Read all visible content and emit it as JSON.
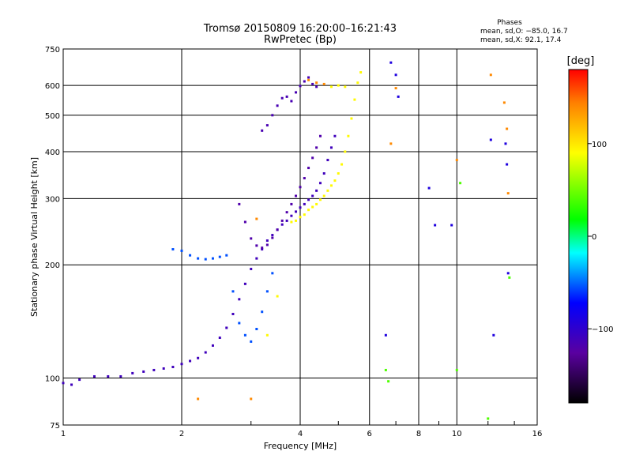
{
  "chart_data": {
    "type": "scatter",
    "title": "Tromsø 20150809 16:20:00–16:21:43",
    "subtitle": "RwPretec (Bp)",
    "xlabel": "Frequency [MHz]",
    "ylabel": "Stationary phase Virtual Height [km]",
    "x_scale": "log",
    "y_scale": "log",
    "xlim": [
      1,
      16
    ],
    "ylim": [
      75,
      750
    ],
    "x_ticks": [
      {
        "value": 1,
        "label": "1"
      },
      {
        "value": 2,
        "label": "2"
      },
      {
        "value": 4,
        "label": "4"
      },
      {
        "value": 6,
        "label": "6"
      },
      {
        "value": 8,
        "label": "8"
      },
      {
        "value": 10,
        "label": "10"
      },
      {
        "value": 16,
        "label": "16"
      }
    ],
    "y_ticks": [
      {
        "value": 75,
        "label": "75"
      },
      {
        "value": 100,
        "label": "100"
      },
      {
        "value": 200,
        "label": "200"
      },
      {
        "value": 300,
        "label": "300"
      },
      {
        "value": 400,
        "label": "400"
      },
      {
        "value": 500,
        "label": "500"
      },
      {
        "value": 600,
        "label": "600"
      },
      {
        "value": 750,
        "label": "750"
      }
    ],
    "grid": true,
    "legend": {
      "title": "Phases",
      "line1": "mean, sd,O: −85.0, 16.7",
      "line2": "mean, sd,X:  92.1, 17.4"
    },
    "colorbar": {
      "label": "[deg]",
      "range": [
        -180,
        180
      ],
      "ticks": [
        {
          "value": 100,
          "label": "100"
        },
        {
          "value": 0,
          "label": "0"
        },
        {
          "value": -100,
          "label": "−100"
        }
      ]
    },
    "series": [
      {
        "mode": "O",
        "phase": -110,
        "points": [
          [
            1.0,
            97
          ],
          [
            1.05,
            96
          ],
          [
            1.1,
            99
          ],
          [
            1.2,
            101
          ],
          [
            1.3,
            101
          ],
          [
            1.4,
            101
          ],
          [
            1.5,
            103
          ],
          [
            1.6,
            104
          ],
          [
            1.7,
            105
          ],
          [
            1.8,
            106
          ],
          [
            1.9,
            107
          ],
          [
            2.0,
            109
          ],
          [
            2.1,
            111
          ],
          [
            2.2,
            113
          ],
          [
            2.3,
            117
          ],
          [
            2.4,
            122
          ],
          [
            2.5,
            128
          ],
          [
            2.6,
            136
          ],
          [
            2.7,
            148
          ],
          [
            2.8,
            162
          ],
          [
            2.9,
            178
          ],
          [
            3.0,
            195
          ],
          [
            3.1,
            208
          ],
          [
            3.2,
            220
          ],
          [
            3.3,
            232
          ],
          [
            3.4,
            240
          ],
          [
            3.5,
            248
          ],
          [
            3.6,
            256
          ],
          [
            3.7,
            262
          ],
          [
            3.8,
            270
          ],
          [
            3.9,
            277
          ],
          [
            4.0,
            284
          ],
          [
            4.1,
            290
          ],
          [
            4.2,
            298
          ],
          [
            4.3,
            305
          ],
          [
            4.4,
            315
          ],
          [
            4.5,
            330
          ],
          [
            4.6,
            350
          ],
          [
            4.7,
            380
          ],
          [
            4.8,
            410
          ],
          [
            4.9,
            440
          ]
        ]
      },
      {
        "mode": "O",
        "phase": -120,
        "points": [
          [
            2.8,
            290
          ],
          [
            2.9,
            260
          ],
          [
            3.0,
            235
          ],
          [
            3.1,
            225
          ],
          [
            3.2,
            222
          ],
          [
            3.3,
            226
          ],
          [
            3.4,
            236
          ],
          [
            3.5,
            248
          ],
          [
            3.6,
            262
          ],
          [
            3.7,
            276
          ],
          [
            3.8,
            290
          ],
          [
            3.9,
            305
          ],
          [
            4.0,
            322
          ],
          [
            4.1,
            340
          ],
          [
            4.2,
            362
          ],
          [
            4.3,
            385
          ],
          [
            4.4,
            410
          ],
          [
            4.5,
            440
          ]
        ]
      },
      {
        "mode": "O",
        "phase": -115,
        "points": [
          [
            3.2,
            455
          ],
          [
            3.3,
            470
          ],
          [
            3.4,
            500
          ],
          [
            3.5,
            530
          ],
          [
            3.6,
            555
          ],
          [
            3.7,
            560
          ],
          [
            3.8,
            545
          ],
          [
            3.9,
            575
          ],
          [
            4.0,
            598
          ],
          [
            4.1,
            615
          ],
          [
            4.2,
            630
          ],
          [
            4.3,
            605
          ],
          [
            4.4,
            595
          ]
        ]
      },
      {
        "mode": "O",
        "phase": -55,
        "points": [
          [
            1.9,
            220
          ],
          [
            2.0,
            218
          ],
          [
            2.1,
            212
          ],
          [
            2.2,
            208
          ],
          [
            2.3,
            207
          ],
          [
            2.4,
            208
          ],
          [
            2.5,
            210
          ],
          [
            2.6,
            212
          ],
          [
            2.7,
            170
          ],
          [
            2.8,
            140
          ],
          [
            2.9,
            130
          ],
          [
            3.0,
            125
          ],
          [
            3.1,
            135
          ],
          [
            3.2,
            150
          ],
          [
            3.3,
            170
          ],
          [
            3.4,
            190
          ]
        ]
      },
      {
        "mode": "X",
        "phase": 92,
        "points": [
          [
            3.8,
            260
          ],
          [
            3.9,
            262
          ],
          [
            4.0,
            268
          ],
          [
            4.1,
            272
          ],
          [
            4.2,
            280
          ],
          [
            4.3,
            285
          ],
          [
            4.4,
            290
          ],
          [
            4.5,
            298
          ],
          [
            4.6,
            305
          ],
          [
            4.7,
            315
          ],
          [
            4.8,
            325
          ],
          [
            4.9,
            335
          ],
          [
            5.0,
            350
          ],
          [
            5.1,
            370
          ],
          [
            5.2,
            400
          ],
          [
            5.3,
            440
          ],
          [
            5.4,
            490
          ],
          [
            5.5,
            550
          ],
          [
            5.6,
            610
          ],
          [
            5.7,
            650
          ],
          [
            5.2,
            595
          ],
          [
            5.0,
            600
          ],
          [
            4.8,
            595
          ],
          [
            3.3,
            130
          ],
          [
            3.5,
            165
          ]
        ]
      },
      {
        "mode": "X",
        "phase": 140,
        "points": [
          [
            4.2,
            620
          ],
          [
            4.4,
            610
          ],
          [
            4.6,
            605
          ],
          [
            6.8,
            420
          ],
          [
            7.0,
            590
          ],
          [
            10.0,
            380
          ],
          [
            12.2,
            640
          ],
          [
            13.2,
            540
          ],
          [
            13.4,
            460
          ],
          [
            13.5,
            310
          ],
          [
            3.1,
            265
          ],
          [
            2.2,
            88
          ],
          [
            3.0,
            88
          ]
        ]
      },
      {
        "mode": "O",
        "phase": -90,
        "points": [
          [
            7.0,
            640
          ],
          [
            7.1,
            560
          ],
          [
            8.5,
            320
          ],
          [
            8.8,
            255
          ],
          [
            9.7,
            255
          ],
          [
            12.2,
            430
          ],
          [
            13.3,
            420
          ],
          [
            13.4,
            370
          ],
          [
            13.5,
            190
          ],
          [
            12.4,
            130
          ],
          [
            6.6,
            130
          ],
          [
            6.8,
            690
          ]
        ]
      },
      {
        "mode": "O",
        "phase": 40,
        "points": [
          [
            6.6,
            105
          ],
          [
            6.7,
            98
          ],
          [
            10.0,
            105
          ],
          [
            12.0,
            78
          ],
          [
            10.2,
            330
          ],
          [
            13.6,
            185
          ]
        ]
      }
    ]
  }
}
